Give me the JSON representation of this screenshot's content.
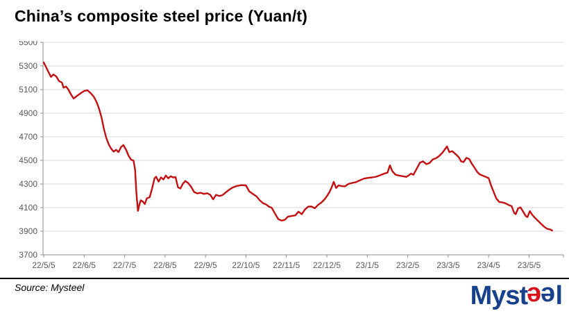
{
  "header": {
    "title": "China’s composite steel price (Yuan/t)"
  },
  "footer": {
    "source": "Source: Mysteel",
    "logo": {
      "prefix": "Myst",
      "e1": "e",
      "e2": "e",
      "suffix": "l"
    }
  },
  "colors": {
    "line": "#c40f10",
    "grid": "#d9d9d9",
    "axis": "#8c8c8c",
    "tick_label": "#595959",
    "logo_blue": "#17418c",
    "logo_red": "#d6131c"
  },
  "chart_data": {
    "type": "line",
    "title": "China’s composite steel price (Yuan/t)",
    "ylabel": "Yuan/t",
    "legend": "none",
    "grid": true,
    "ylim": [
      3700,
      5500
    ],
    "xlim": [
      0,
      12.85
    ],
    "y_ticks": [
      5500,
      5300,
      5100,
      4900,
      4700,
      4500,
      4300,
      4100,
      3900,
      3700
    ],
    "x_tick_labels": [
      "22/5/5",
      "22/6/5",
      "22/7/5",
      "22/8/5",
      "22/9/5",
      "22/10/5",
      "22/11/5",
      "22/12/5",
      "23/1/5",
      "23/2/5",
      "23/3/5",
      "23/4/5",
      "23/5/5"
    ],
    "x_unit": "month index from 22/5/5",
    "series": [
      {
        "name": "China composite steel price (Yuan/t)",
        "points": [
          [
            0,
            5330
          ],
          [
            0.07,
            5282
          ],
          [
            0.13,
            5240
          ],
          [
            0.18,
            5207
          ],
          [
            0.24,
            5228
          ],
          [
            0.31,
            5211
          ],
          [
            0.38,
            5172
          ],
          [
            0.45,
            5160
          ],
          [
            0.49,
            5116
          ],
          [
            0.55,
            5126
          ],
          [
            0.61,
            5100
          ],
          [
            0.68,
            5056
          ],
          [
            0.74,
            5024
          ],
          [
            0.83,
            5048
          ],
          [
            0.93,
            5073
          ],
          [
            1,
            5088
          ],
          [
            1.08,
            5094
          ],
          [
            1.16,
            5070
          ],
          [
            1.24,
            5038
          ],
          [
            1.31,
            4992
          ],
          [
            1.37,
            4935
          ],
          [
            1.43,
            4862
          ],
          [
            1.49,
            4765
          ],
          [
            1.55,
            4688
          ],
          [
            1.61,
            4634
          ],
          [
            1.67,
            4598
          ],
          [
            1.73,
            4574
          ],
          [
            1.79,
            4590
          ],
          [
            1.85,
            4570
          ],
          [
            1.91,
            4612
          ],
          [
            1.97,
            4630
          ],
          [
            2.04,
            4588
          ],
          [
            2.1,
            4538
          ],
          [
            2.16,
            4506
          ],
          [
            2.22,
            4498
          ],
          [
            2.26,
            4420
          ],
          [
            2.29,
            4230
          ],
          [
            2.33,
            4072
          ],
          [
            2.36,
            4120
          ],
          [
            2.4,
            4162
          ],
          [
            2.45,
            4152
          ],
          [
            2.5,
            4130
          ],
          [
            2.55,
            4178
          ],
          [
            2.62,
            4188
          ],
          [
            2.68,
            4262
          ],
          [
            2.74,
            4348
          ],
          [
            2.78,
            4362
          ],
          [
            2.84,
            4320
          ],
          [
            2.9,
            4356
          ],
          [
            2.96,
            4338
          ],
          [
            3.02,
            4372
          ],
          [
            3.08,
            4348
          ],
          [
            3.14,
            4366
          ],
          [
            3.2,
            4356
          ],
          [
            3.26,
            4358
          ],
          [
            3.32,
            4272
          ],
          [
            3.38,
            4262
          ],
          [
            3.44,
            4302
          ],
          [
            3.5,
            4326
          ],
          [
            3.57,
            4308
          ],
          [
            3.64,
            4278
          ],
          [
            3.72,
            4232
          ],
          [
            3.8,
            4220
          ],
          [
            3.88,
            4226
          ],
          [
            3.96,
            4216
          ],
          [
            4.04,
            4222
          ],
          [
            4.12,
            4208
          ],
          [
            4.19,
            4170
          ],
          [
            4.26,
            4208
          ],
          [
            4.34,
            4198
          ],
          [
            4.42,
            4206
          ],
          [
            4.5,
            4228
          ],
          [
            4.58,
            4250
          ],
          [
            4.66,
            4268
          ],
          [
            4.76,
            4282
          ],
          [
            4.88,
            4290
          ],
          [
            5,
            4288
          ],
          [
            5.08,
            4238
          ],
          [
            5.16,
            4218
          ],
          [
            5.26,
            4196
          ],
          [
            5.34,
            4162
          ],
          [
            5.42,
            4138
          ],
          [
            5.5,
            4126
          ],
          [
            5.58,
            4106
          ],
          [
            5.64,
            4098
          ],
          [
            5.72,
            4048
          ],
          [
            5.8,
            4002
          ],
          [
            5.88,
            3990
          ],
          [
            5.96,
            3996
          ],
          [
            6.04,
            4024
          ],
          [
            6.14,
            4030
          ],
          [
            6.22,
            4034
          ],
          [
            6.3,
            4066
          ],
          [
            6.38,
            4044
          ],
          [
            6.46,
            4084
          ],
          [
            6.54,
            4108
          ],
          [
            6.62,
            4110
          ],
          [
            6.7,
            4094
          ],
          [
            6.78,
            4122
          ],
          [
            6.86,
            4142
          ],
          [
            6.94,
            4168
          ],
          [
            7,
            4196
          ],
          [
            7.06,
            4228
          ],
          [
            7.12,
            4272
          ],
          [
            7.17,
            4318
          ],
          [
            7.23,
            4266
          ],
          [
            7.29,
            4288
          ],
          [
            7.37,
            4282
          ],
          [
            7.45,
            4280
          ],
          [
            7.53,
            4300
          ],
          [
            7.62,
            4308
          ],
          [
            7.72,
            4316
          ],
          [
            7.82,
            4332
          ],
          [
            7.92,
            4346
          ],
          [
            8.02,
            4352
          ],
          [
            8.12,
            4356
          ],
          [
            8.22,
            4362
          ],
          [
            8.32,
            4374
          ],
          [
            8.42,
            4388
          ],
          [
            8.5,
            4396
          ],
          [
            8.56,
            4458
          ],
          [
            8.62,
            4408
          ],
          [
            8.7,
            4378
          ],
          [
            8.78,
            4372
          ],
          [
            8.88,
            4366
          ],
          [
            8.96,
            4360
          ],
          [
            9.02,
            4372
          ],
          [
            9.08,
            4388
          ],
          [
            9.14,
            4378
          ],
          [
            9.22,
            4428
          ],
          [
            9.3,
            4480
          ],
          [
            9.38,
            4492
          ],
          [
            9.46,
            4468
          ],
          [
            9.54,
            4478
          ],
          [
            9.62,
            4508
          ],
          [
            9.7,
            4518
          ],
          [
            9.78,
            4538
          ],
          [
            9.86,
            4566
          ],
          [
            9.92,
            4594
          ],
          [
            9.97,
            4618
          ],
          [
            10.03,
            4570
          ],
          [
            10.1,
            4578
          ],
          [
            10.18,
            4554
          ],
          [
            10.26,
            4528
          ],
          [
            10.32,
            4492
          ],
          [
            10.38,
            4486
          ],
          [
            10.45,
            4522
          ],
          [
            10.52,
            4512
          ],
          [
            10.58,
            4474
          ],
          [
            10.65,
            4438
          ],
          [
            10.72,
            4402
          ],
          [
            10.78,
            4382
          ],
          [
            10.85,
            4372
          ],
          [
            10.92,
            4362
          ],
          [
            11,
            4350
          ],
          [
            11.06,
            4288
          ],
          [
            11.13,
            4228
          ],
          [
            11.19,
            4178
          ],
          [
            11.26,
            4148
          ],
          [
            11.34,
            4144
          ],
          [
            11.42,
            4136
          ],
          [
            11.5,
            4122
          ],
          [
            11.57,
            4112
          ],
          [
            11.63,
            4056
          ],
          [
            11.67,
            4044
          ],
          [
            11.73,
            4094
          ],
          [
            11.79,
            4102
          ],
          [
            11.86,
            4062
          ],
          [
            11.92,
            4028
          ],
          [
            11.96,
            4020
          ],
          [
            12.02,
            4070
          ],
          [
            12.08,
            4038
          ],
          [
            12.15,
            4012
          ],
          [
            12.22,
            3988
          ],
          [
            12.3,
            3962
          ],
          [
            12.38,
            3936
          ],
          [
            12.45,
            3920
          ],
          [
            12.52,
            3915
          ],
          [
            12.57,
            3906
          ]
        ]
      }
    ]
  }
}
